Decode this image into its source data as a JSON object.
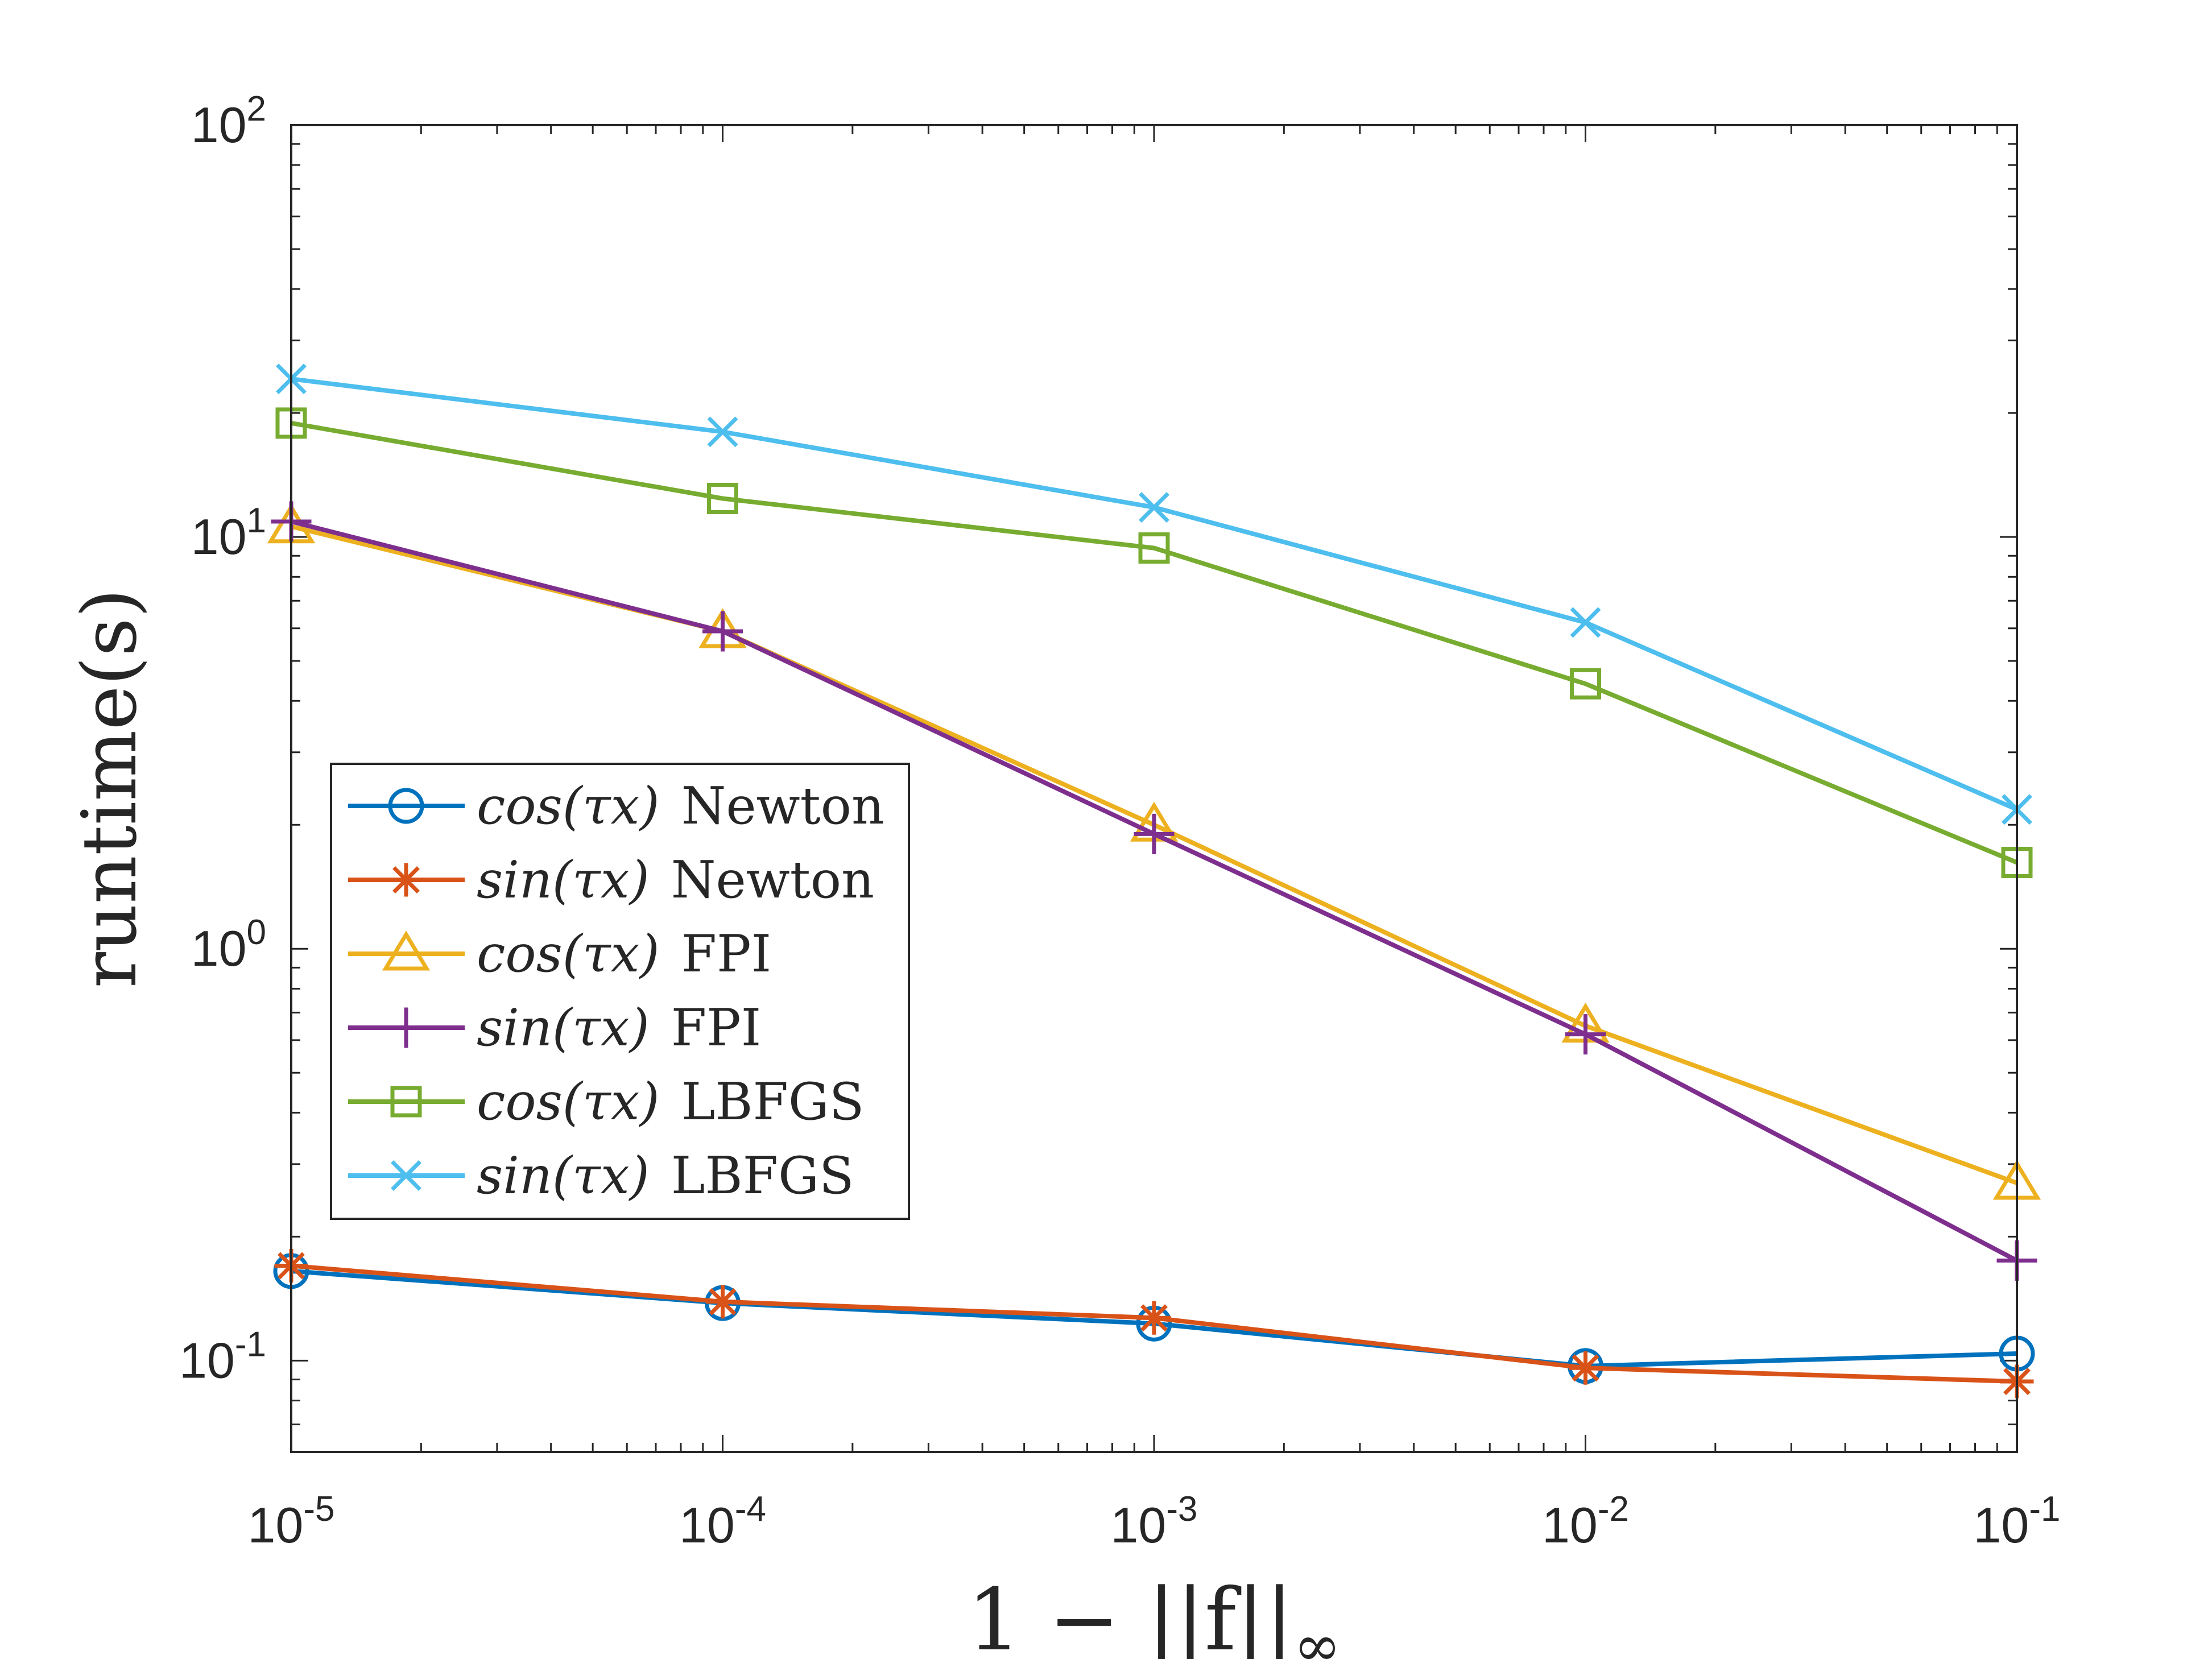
{
  "chart_data": {
    "type": "line",
    "scale": {
      "x": "log",
      "y": "log"
    },
    "xlabel": {
      "main": "1 − ||f||",
      "subscript": "∞"
    },
    "ylabel": "runtime(s)",
    "xlim": [
      1e-05,
      0.1
    ],
    "ylim": [
      0.06,
      100
    ],
    "x": [
      1e-05,
      0.0001,
      0.001,
      0.01,
      0.1
    ],
    "x_ticks": [
      {
        "base": "10",
        "exp": "-5"
      },
      {
        "base": "10",
        "exp": "-4"
      },
      {
        "base": "10",
        "exp": "-3"
      },
      {
        "base": "10",
        "exp": "-2"
      },
      {
        "base": "10",
        "exp": "-1"
      }
    ],
    "y_ticks": [
      {
        "value": 0.1,
        "base": "10",
        "exp": "-1"
      },
      {
        "value": 1,
        "base": "10",
        "exp": "0"
      },
      {
        "value": 10,
        "base": "10",
        "exp": "1"
      },
      {
        "value": 100,
        "base": "10",
        "exp": "2"
      }
    ],
    "grid": false,
    "legend_position": "center-left",
    "series": [
      {
        "func": "cos(τx)",
        "method": "Newton",
        "color": "#0072BD",
        "marker": "circle",
        "values": [
          0.165,
          0.138,
          0.123,
          0.097,
          0.104
        ]
      },
      {
        "func": "sin(τx)",
        "method": "Newton",
        "color": "#D95319",
        "marker": "asterisk",
        "values": [
          0.17,
          0.139,
          0.127,
          0.096,
          0.089
        ]
      },
      {
        "func": "cos(τx)",
        "method": "FPI",
        "color": "#EDB120",
        "marker": "triangle",
        "values": [
          10.6,
          5.9,
          2.0,
          0.65,
          0.27
        ]
      },
      {
        "func": "sin(τx)",
        "method": "FPI",
        "color": "#7E2F8E",
        "marker": "plus",
        "values": [
          10.9,
          5.9,
          1.9,
          0.62,
          0.175
        ]
      },
      {
        "func": "cos(τx)",
        "method": "LBFGS",
        "color": "#77AC30",
        "marker": "square",
        "values": [
          18.9,
          12.4,
          9.4,
          4.4,
          1.62
        ]
      },
      {
        "func": "sin(τx)",
        "method": "LBFGS",
        "color": "#4DBEEE",
        "marker": "x",
        "values": [
          24.2,
          18.0,
          11.8,
          6.2,
          2.18
        ]
      }
    ]
  }
}
